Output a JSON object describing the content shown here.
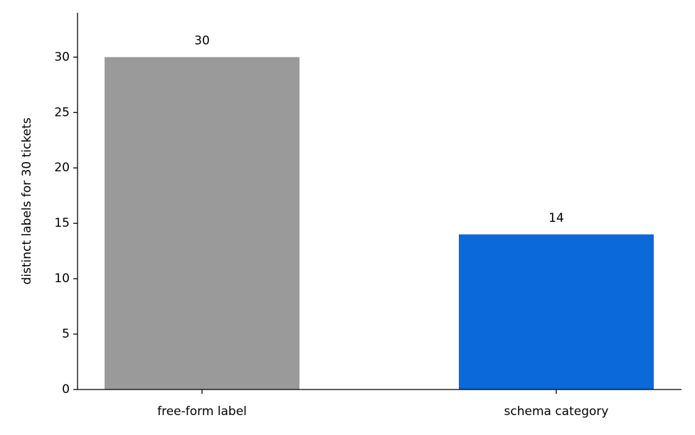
{
  "chart_data": {
    "type": "bar",
    "ylabel": "distinct labels for 30 tickets",
    "categories": [
      "free-form label",
      "schema category"
    ],
    "values": [
      30,
      14
    ],
    "colors": [
      "#9a9a9a",
      "#0b69d9"
    ],
    "ylim": [
      0,
      34
    ],
    "yticks": [
      0,
      5,
      10,
      15,
      20,
      25,
      30
    ],
    "grid": false
  }
}
